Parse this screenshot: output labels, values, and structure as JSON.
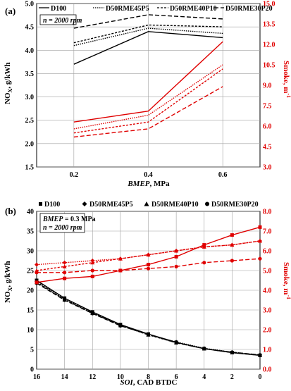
{
  "colors": {
    "black": "#000000",
    "red": "#e00000",
    "grid": "#a0a0a0"
  },
  "chart_data": [
    {
      "type": "line",
      "panel_label": "(a)",
      "annotation": "n = 2000 rpm",
      "xlabel_var": "BMEP",
      "xlabel_unit": ", MPa",
      "ylabel_left": "NO",
      "ylabel_left_sub": "X",
      "ylabel_left_unit": ", g/kWh",
      "ylabel_right": "Smoke, m",
      "ylabel_right_sup": "-1",
      "x": [
        0.2,
        0.4,
        0.6
      ],
      "xticks": [
        "0.2",
        "0.4",
        "0.6"
      ],
      "xlim": [
        0.1,
        0.7
      ],
      "ylim_left": [
        1.5,
        5.0
      ],
      "yticks_left": [
        "1.5",
        "2.0",
        "2.5",
        "3.0",
        "3.5",
        "4.0",
        "4.5",
        "5.0"
      ],
      "ylim_right": [
        3.0,
        15.0
      ],
      "yticks_right": [
        "3.0",
        "4.5",
        "6.0",
        "7.5",
        "9.0",
        "10.5",
        "12.0",
        "13.5",
        "15.0"
      ],
      "grid": true,
      "legend": [
        "D100",
        "D50RME45P5",
        "D50RME40P10",
        "D50RME30P20"
      ],
      "nox_series": [
        {
          "name": "D100",
          "values": [
            3.7,
            4.4,
            4.27
          ]
        },
        {
          "name": "D50RME45P5",
          "values": [
            4.1,
            4.47,
            4.36
          ]
        },
        {
          "name": "D50RME40P10",
          "values": [
            4.16,
            4.54,
            4.5
          ]
        },
        {
          "name": "D50RME30P20",
          "values": [
            4.47,
            4.76,
            4.67
          ]
        }
      ],
      "smoke_series": [
        {
          "name": "D100",
          "values": [
            6.3,
            7.1,
            12.2
          ]
        },
        {
          "name": "D50RME45P5",
          "values": [
            5.8,
            6.8,
            10.5
          ]
        },
        {
          "name": "D50RME40P10",
          "values": [
            5.5,
            6.3,
            10.2
          ]
        },
        {
          "name": "D50RME30P20",
          "values": [
            5.2,
            5.8,
            8.9
          ]
        }
      ]
    },
    {
      "type": "line",
      "panel_label": "(b)",
      "annotation1_var": "BMEP",
      "annotation1_val": " = 0.3 MPa",
      "annotation2": "n = 2000 rpm",
      "xlabel_var": "SOI",
      "xlabel_unit": ", CAD BTDC",
      "ylabel_left": "NO",
      "ylabel_left_sub": "X",
      "ylabel_left_unit": ", g/kWh",
      "ylabel_right": "Smoke, m",
      "ylabel_right_sup": "-1",
      "x": [
        16,
        14,
        12,
        10,
        8,
        6,
        4,
        2,
        0
      ],
      "xticks": [
        "16",
        "14",
        "12",
        "10",
        "8",
        "6",
        "4",
        "2",
        "0"
      ],
      "xlim": [
        16,
        0
      ],
      "ylim_left": [
        0,
        40
      ],
      "yticks_left": [
        "0",
        "5",
        "10",
        "15",
        "20",
        "25",
        "30",
        "35",
        "40"
      ],
      "ylim_right": [
        0,
        8
      ],
      "yticks_right": [
        "0.0",
        "1.0",
        "2.0",
        "3.0",
        "4.0",
        "5.0",
        "6.0",
        "7.0",
        "8.0"
      ],
      "grid": true,
      "legend": [
        "D100",
        "D50RME45P5",
        "D50RME40P10",
        "D50RME30P20"
      ],
      "nox_series": [
        {
          "name": "D100",
          "values": [
            22.5,
            18.0,
            14.5,
            11.3,
            8.9,
            6.8,
            5.2,
            4.2,
            3.5
          ]
        },
        {
          "name": "D50RME45P5",
          "values": [
            22.2,
            17.8,
            14.3,
            11.2,
            8.8,
            6.9,
            5.3,
            4.3,
            3.6
          ]
        },
        {
          "name": "D50RME40P10",
          "values": [
            22.0,
            17.6,
            14.2,
            11.1,
            8.7,
            6.7,
            5.2,
            4.2,
            3.5
          ]
        },
        {
          "name": "D50RME30P20",
          "values": [
            21.8,
            17.5,
            14.1,
            11.0,
            8.8,
            6.7,
            5.2,
            4.3,
            3.6
          ]
        }
      ],
      "smoke_series": [
        {
          "name": "D100",
          "values": [
            4.4,
            4.6,
            4.7,
            5.0,
            5.3,
            5.7,
            6.3,
            6.8,
            7.2
          ]
        },
        {
          "name": "D50RME45P5",
          "values": [
            5.3,
            5.4,
            5.5,
            5.6,
            5.8,
            6.0,
            6.2,
            6.3,
            6.5
          ]
        },
        {
          "name": "D50RME40P10",
          "values": [
            5.0,
            5.2,
            5.4,
            5.6,
            5.8,
            6.0,
            6.2,
            6.3,
            6.5
          ]
        },
        {
          "name": "D50RME30P20",
          "values": [
            4.9,
            4.9,
            5.0,
            5.0,
            5.1,
            5.2,
            5.4,
            5.5,
            5.6
          ]
        }
      ]
    }
  ]
}
